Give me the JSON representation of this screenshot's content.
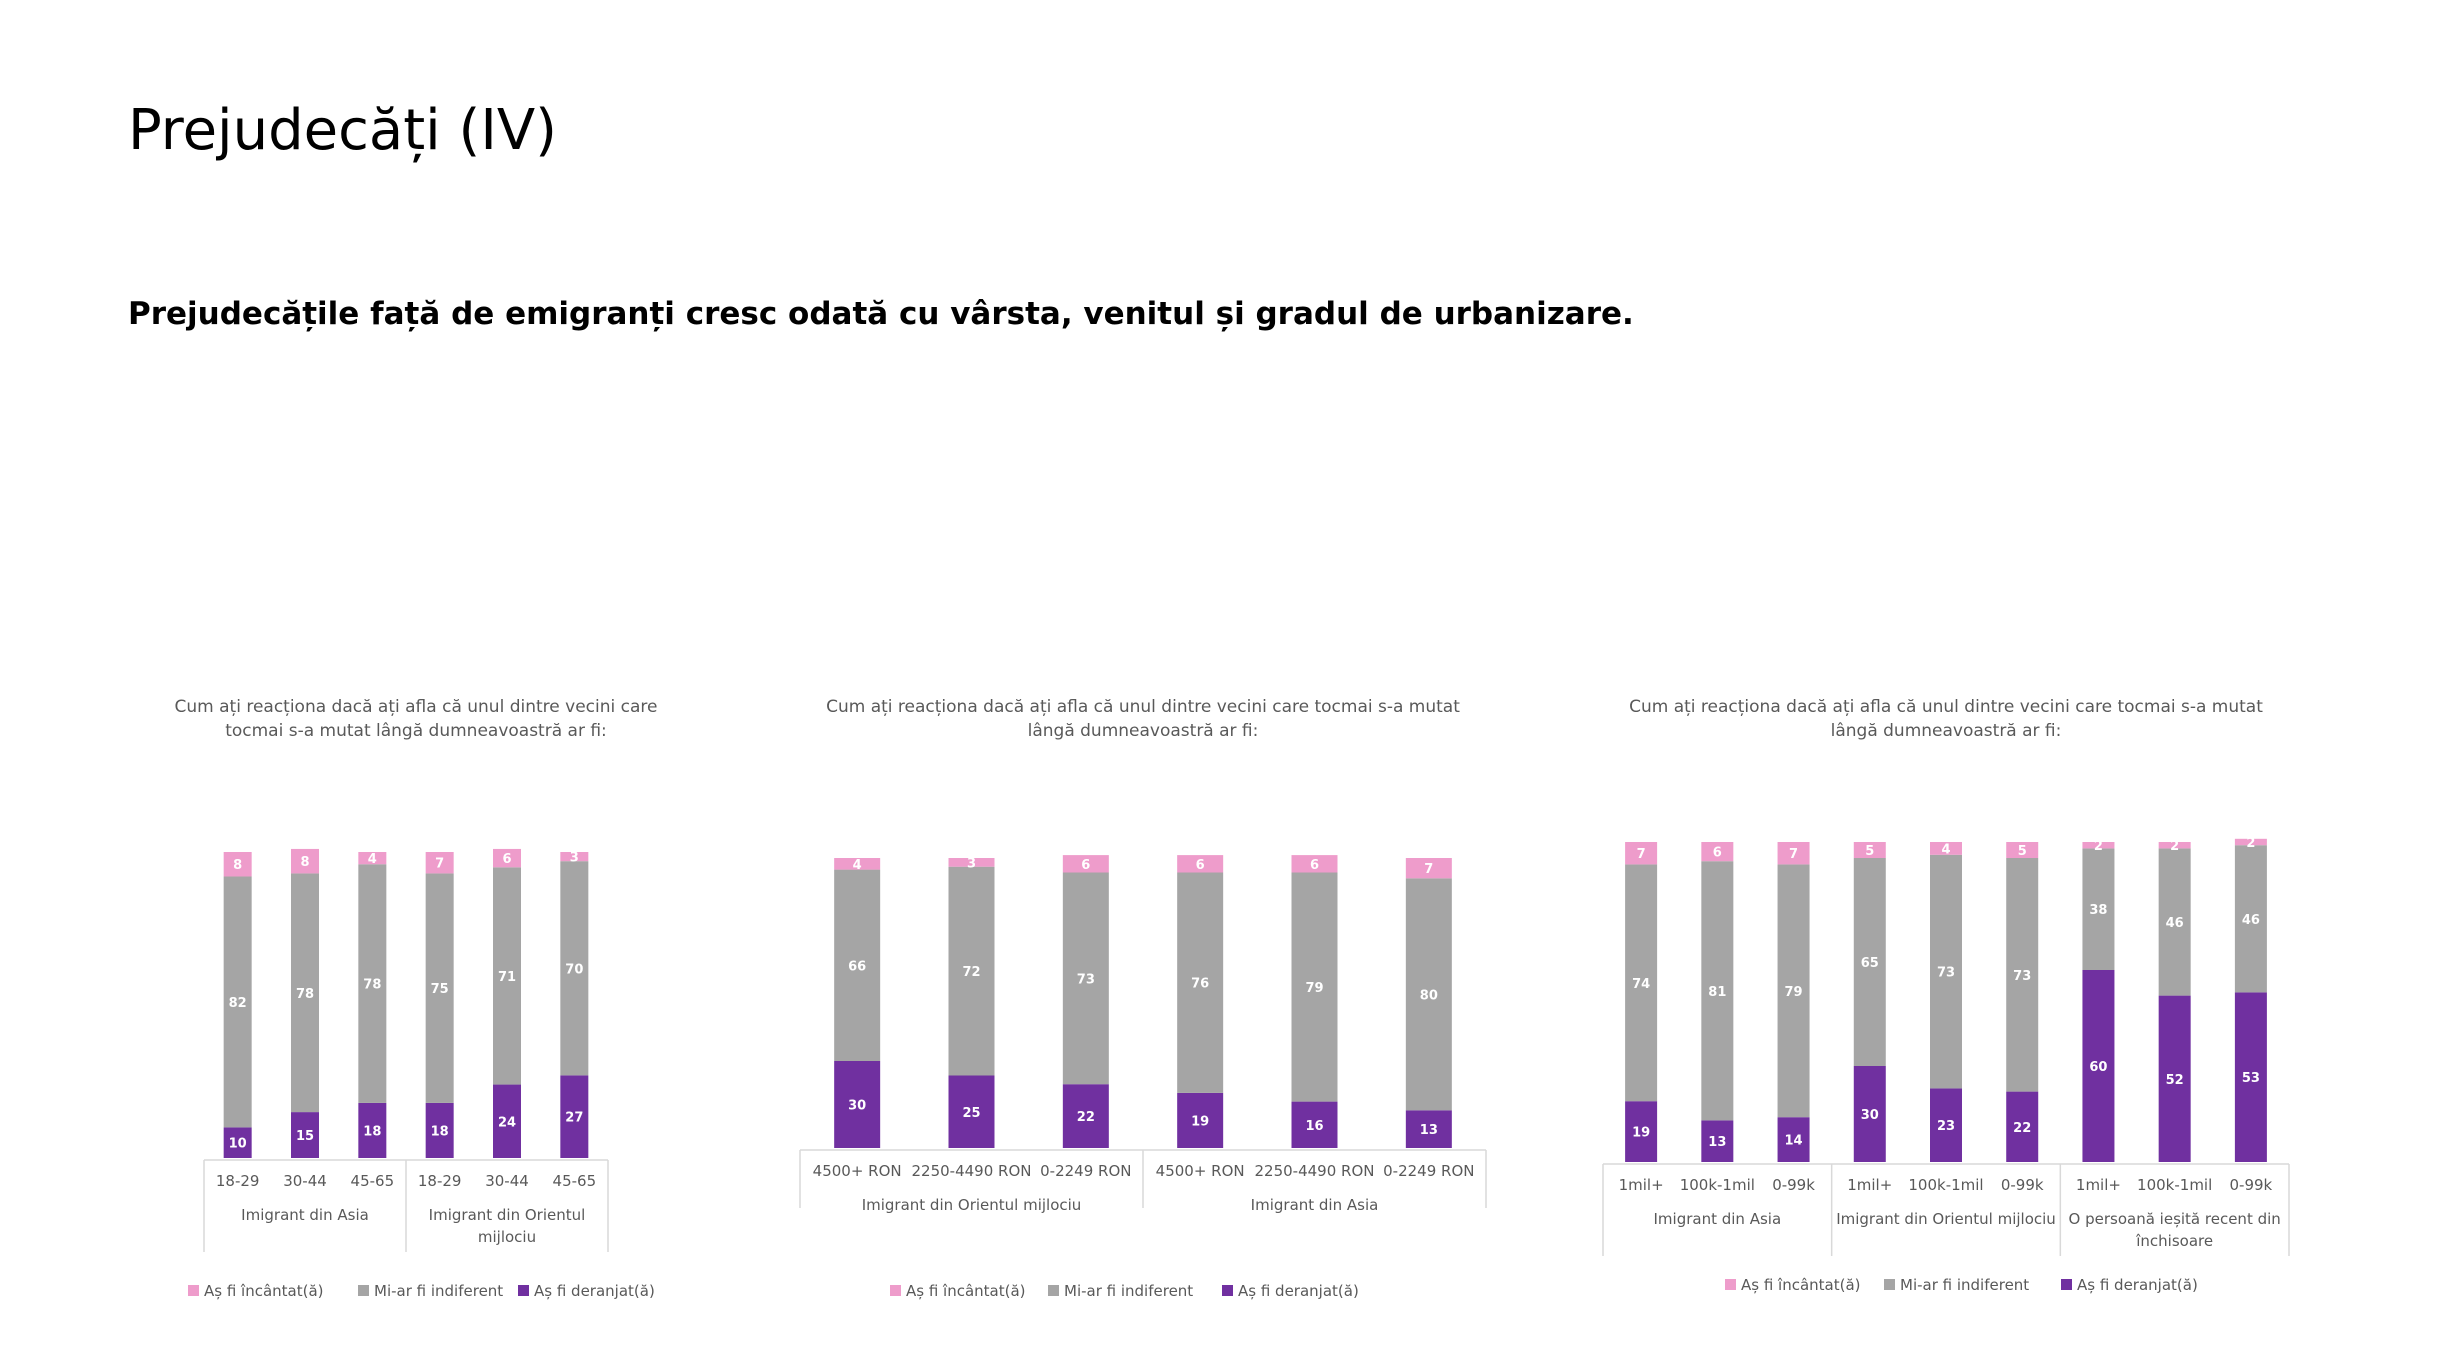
{
  "title": "Prejudecăți (IV)",
  "subtitle": "Prejudecățile față de emigranți cresc odată cu vârsta, venitul și gradul de urbanizare.",
  "colors": {
    "incantat": "#EE9CCB",
    "indiferent": "#A5A5A5",
    "deranjat": "#7030A0",
    "axis": "#D9D9D9",
    "text": "#595959"
  },
  "legend": [
    "Aș fi încântat(ă)",
    "Mi-ar fi indiferent",
    "Aș fi deranjat(ă)"
  ],
  "chart_data": [
    {
      "type": "bar",
      "stacked": true,
      "title": "Cum ați reacționa dacă ați afla că unul dintre vecini care tocmai s-a mutat lângă dumneavoastră ar fi:",
      "title_lines": [
        "Cum ați reacționa dacă ați afla că unul dintre vecini care",
        "tocmai s-a mutat lângă dumneavoastră ar fi:"
      ],
      "categories": [
        "18-29",
        "30-44",
        "45-65",
        "18-29",
        "30-44",
        "45-65"
      ],
      "groups": [
        {
          "lines": [
            "Imigrant din Asia"
          ],
          "count": 3
        },
        {
          "lines": [
            "Imigrant din Orientul",
            "mijlociu"
          ],
          "count": 3
        }
      ],
      "series": [
        {
          "name": "Aș fi deranjat(ă)",
          "values": [
            10,
            15,
            18,
            18,
            24,
            27
          ]
        },
        {
          "name": "Mi-ar fi indiferent",
          "values": [
            82,
            78,
            78,
            75,
            71,
            70
          ]
        },
        {
          "name": "Aș fi încântat(ă)",
          "values": [
            8,
            8,
            4,
            7,
            6,
            3
          ]
        }
      ],
      "legend_position": "bottom"
    },
    {
      "type": "bar",
      "stacked": true,
      "title": "Cum ați reacționa dacă ați afla că unul dintre vecini care tocmai s-a mutat lângă dumneavoastră ar fi:",
      "title_lines": [
        "Cum ați reacționa dacă ați afla că unul dintre vecini care tocmai s-a mutat",
        "lângă dumneavoastră ar fi:"
      ],
      "categories": [
        "4500+ RON",
        "2250-4490 RON",
        "0-2249 RON",
        "4500+ RON",
        "2250-4490 RON",
        "0-2249 RON"
      ],
      "groups": [
        {
          "lines": [
            "Imigrant din Orientul mijlociu"
          ],
          "count": 3
        },
        {
          "lines": [
            "Imigrant din Asia"
          ],
          "count": 3
        }
      ],
      "series": [
        {
          "name": "Aș fi deranjat(ă)",
          "values": [
            30,
            25,
            22,
            19,
            16,
            13
          ]
        },
        {
          "name": "Mi-ar fi indiferent",
          "values": [
            66,
            72,
            73,
            76,
            79,
            80
          ]
        },
        {
          "name": "Aș fi încântat(ă)",
          "values": [
            4,
            3,
            6,
            6,
            6,
            7
          ]
        }
      ],
      "legend_position": "bottom"
    },
    {
      "type": "bar",
      "stacked": true,
      "title": "Cum ați reacționa dacă ați afla că unul dintre vecini care tocmai s-a mutat lângă dumneavoastră ar fi:",
      "title_lines": [
        "Cum ați reacționa dacă ați afla că unul dintre vecini care tocmai s-a mutat",
        "lângă dumneavoastră ar fi:"
      ],
      "categories": [
        "1mil+",
        "100k-1mil",
        "0-99k",
        "1mil+",
        "100k-1mil",
        "0-99k",
        "1mil+",
        "100k-1mil",
        "0-99k"
      ],
      "groups": [
        {
          "lines": [
            "Imigrant din Asia"
          ],
          "count": 3
        },
        {
          "lines": [
            "Imigrant din Orientul mijlociu"
          ],
          "count": 3
        },
        {
          "lines": [
            "O persoană ieșită recent din",
            "închisoare"
          ],
          "count": 3
        }
      ],
      "series": [
        {
          "name": "Aș fi deranjat(ă)",
          "values": [
            19,
            13,
            14,
            30,
            23,
            22,
            60,
            52,
            53
          ]
        },
        {
          "name": "Mi-ar fi indiferent",
          "values": [
            74,
            81,
            79,
            65,
            73,
            73,
            38,
            46,
            46
          ]
        },
        {
          "name": "Aș fi încântat(ă)",
          "values": [
            7,
            6,
            7,
            5,
            4,
            5,
            2,
            2,
            2
          ]
        }
      ],
      "legend_position": "bottom"
    }
  ]
}
